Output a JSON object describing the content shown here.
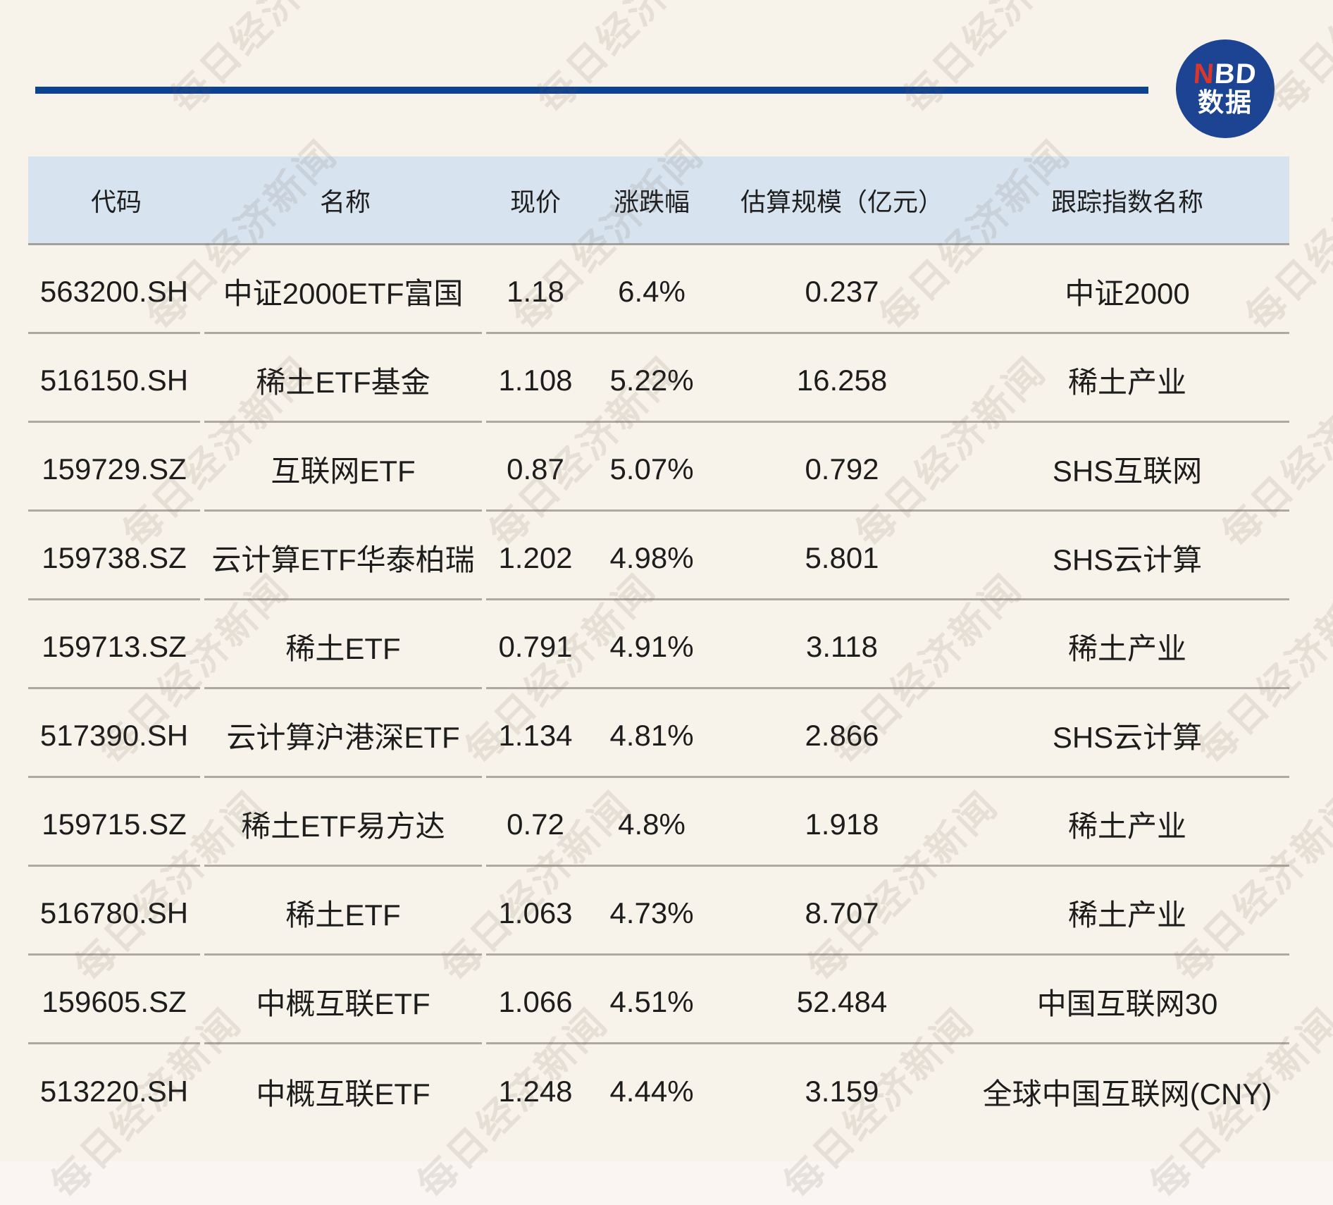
{
  "page": {
    "background": "#f8f3ea",
    "footer_background": "#faf5f3"
  },
  "brand": {
    "line_color": "#0d4192",
    "logo_bg": "#1c4493",
    "logo_n": "N",
    "logo_bd": "BD",
    "logo_cn": "数据",
    "logo_n_color": "#d9372b"
  },
  "watermark": {
    "text": "每日经济新闻"
  },
  "table": {
    "header": {
      "code": "代码",
      "name": "名称",
      "price": "现价",
      "change": "涨跌幅",
      "scale": "估算规模（亿元）",
      "index": "跟踪指数名称"
    },
    "rows": [
      {
        "code": "563200.SH",
        "name": "中证2000ETF富国",
        "price": "1.18",
        "change": "6.4%",
        "scale": "0.237",
        "index": "中证2000"
      },
      {
        "code": "516150.SH",
        "name": "稀土ETF基金",
        "price": "1.108",
        "change": "5.22%",
        "scale": "16.258",
        "index": "稀土产业"
      },
      {
        "code": "159729.SZ",
        "name": "互联网ETF",
        "price": "0.87",
        "change": "5.07%",
        "scale": "0.792",
        "index": "SHS互联网"
      },
      {
        "code": "159738.SZ",
        "name": "云计算ETF华泰柏瑞",
        "price": "1.202",
        "change": "4.98%",
        "scale": "5.801",
        "index": "SHS云计算"
      },
      {
        "code": "159713.SZ",
        "name": "稀土ETF",
        "price": "0.791",
        "change": "4.91%",
        "scale": "3.118",
        "index": "稀土产业"
      },
      {
        "code": "517390.SH",
        "name": "云计算沪港深ETF",
        "price": "1.134",
        "change": "4.81%",
        "scale": "2.866",
        "index": "SHS云计算"
      },
      {
        "code": "159715.SZ",
        "name": "稀土ETF易方达",
        "price": "0.72",
        "change": "4.8%",
        "scale": "1.918",
        "index": "稀土产业"
      },
      {
        "code": "516780.SH",
        "name": "稀土ETF",
        "price": "1.063",
        "change": "4.73%",
        "scale": "8.707",
        "index": "稀土产业"
      },
      {
        "code": "159605.SZ",
        "name": "中概互联ETF",
        "price": "1.066",
        "change": "4.51%",
        "scale": "52.484",
        "index": "中国互联网30"
      },
      {
        "code": "513220.SH",
        "name": "中概互联ETF",
        "price": "1.248",
        "change": "4.44%",
        "scale": "3.159",
        "index": "全球中国互联网(CNY)"
      }
    ]
  },
  "chart_data": {
    "type": "table",
    "title": "",
    "columns": [
      "代码",
      "名称",
      "现价",
      "涨跌幅",
      "估算规模（亿元）",
      "跟踪指数名称"
    ],
    "rows": [
      [
        "563200.SH",
        "中证2000ETF富国",
        "1.18",
        "6.4%",
        "0.237",
        "中证2000"
      ],
      [
        "516150.SH",
        "稀土ETF基金",
        "1.108",
        "5.22%",
        "16.258",
        "稀土产业"
      ],
      [
        "159729.SZ",
        "互联网ETF",
        "0.87",
        "5.07%",
        "0.792",
        "SHS互联网"
      ],
      [
        "159738.SZ",
        "云计算ETF华泰柏瑞",
        "1.202",
        "4.98%",
        "5.801",
        "SHS云计算"
      ],
      [
        "159713.SZ",
        "稀土ETF",
        "0.791",
        "4.91%",
        "3.118",
        "稀土产业"
      ],
      [
        "517390.SH",
        "云计算沪港深ETF",
        "1.134",
        "4.81%",
        "2.866",
        "SHS云计算"
      ],
      [
        "159715.SZ",
        "稀土ETF易方达",
        "0.72",
        "4.8%",
        "1.918",
        "稀土产业"
      ],
      [
        "516780.SH",
        "稀土ETF",
        "1.063",
        "4.73%",
        "8.707",
        "稀土产业"
      ],
      [
        "159605.SZ",
        "中概互联ETF",
        "1.066",
        "4.51%",
        "52.484",
        "中国互联网30"
      ],
      [
        "513220.SH",
        "中概互联ETF",
        "1.248",
        "4.44%",
        "3.159",
        "全球中国互联网(CNY)"
      ]
    ]
  }
}
